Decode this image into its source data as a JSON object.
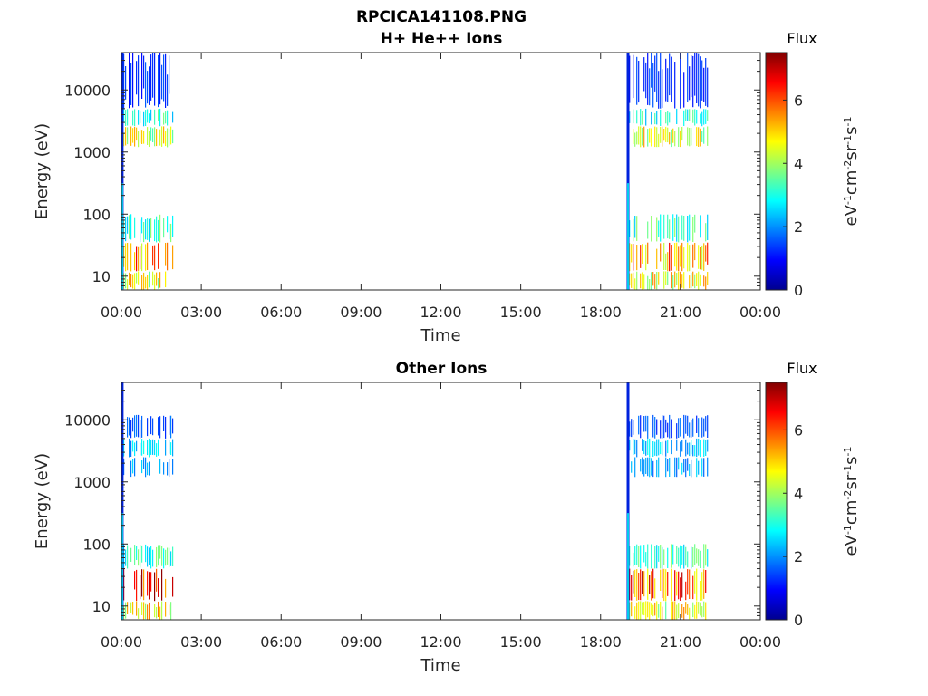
{
  "figure_title": "RPCICA141108.PNG",
  "colors": {
    "axis": "#262626",
    "background": "#ffffff",
    "colormap": "jet"
  },
  "colorbar": {
    "title": "Flux",
    "unit_base": "eV",
    "unit_parts": [
      {
        "t": "eV",
        "sup": "-1"
      },
      {
        "t": "cm",
        "sup": "-2"
      },
      {
        "t": "sr",
        "sup": "-1"
      },
      {
        "t": "s",
        "sup": "-1"
      }
    ],
    "range": [
      0,
      7.5
    ],
    "ticks": [
      0,
      2,
      4,
      6
    ]
  },
  "chart_data": [
    {
      "type": "heatmap",
      "title": "H+ He++ Ions",
      "xlabel": "Time",
      "ylabel": "Energy (eV)",
      "yscale": "log",
      "x_range_hours": [
        0,
        24
      ],
      "y_range": [
        6,
        40000
      ],
      "xticks": [
        "00:00",
        "03:00",
        "06:00",
        "09:00",
        "12:00",
        "15:00",
        "18:00",
        "21:00",
        "00:00"
      ],
      "yticks": [
        {
          "value": 10,
          "label": "10"
        },
        {
          "value": 100,
          "label": "100"
        },
        {
          "value": 1000,
          "label": "1000"
        },
        {
          "value": 10000,
          "label": "10000"
        }
      ],
      "data_intervals_hours": [
        [
          0.0,
          1.95
        ],
        [
          19.0,
          22.05
        ]
      ],
      "spikes_hours": [
        0.03,
        19.03
      ],
      "bands": [
        {
          "e_low": 1200,
          "e_high": 2600,
          "flux": 4.4
        },
        {
          "e_low": 2600,
          "e_high": 5000,
          "flux": 3.0
        },
        {
          "e_low": 12,
          "e_high": 35,
          "flux": 5.4
        },
        {
          "e_low": 6,
          "e_high": 12,
          "flux": 4.6
        },
        {
          "e_low": 35,
          "e_high": 100,
          "flux": 3.2
        },
        {
          "e_low": 5000,
          "e_high": 40000,
          "flux": 1.3
        }
      ]
    },
    {
      "type": "heatmap",
      "title": "Other Ions",
      "xlabel": "Time",
      "ylabel": "Energy (eV)",
      "yscale": "log",
      "x_range_hours": [
        0,
        24
      ],
      "y_range": [
        6,
        40000
      ],
      "xticks": [
        "00:00",
        "03:00",
        "06:00",
        "09:00",
        "12:00",
        "15:00",
        "18:00",
        "21:00",
        "00:00"
      ],
      "yticks": [
        {
          "value": 10,
          "label": "10"
        },
        {
          "value": 100,
          "label": "100"
        },
        {
          "value": 1000,
          "label": "1000"
        },
        {
          "value": 10000,
          "label": "10000"
        }
      ],
      "data_intervals_hours": [
        [
          0.0,
          1.95
        ],
        [
          19.0,
          22.05
        ]
      ],
      "spikes_hours": [
        0.03,
        19.03
      ],
      "bands": [
        {
          "e_low": 2500,
          "e_high": 5000,
          "flux": 2.4
        },
        {
          "e_low": 1200,
          "e_high": 2500,
          "flux": 2.1
        },
        {
          "e_low": 12,
          "e_high": 40,
          "flux": 6.0
        },
        {
          "e_low": 6,
          "e_high": 12,
          "flux": 4.6
        },
        {
          "e_low": 40,
          "e_high": 100,
          "flux": 3.2
        },
        {
          "e_low": 5000,
          "e_high": 12000,
          "flux": 1.5
        }
      ]
    }
  ]
}
